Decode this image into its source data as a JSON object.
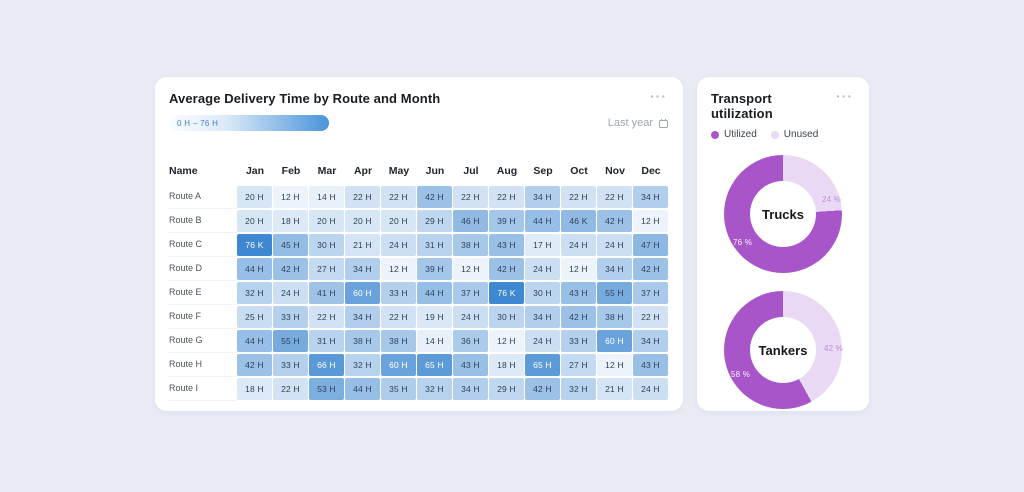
{
  "page": {
    "background": "#e8ebf4"
  },
  "heatmap_card": {
    "title": "Average Delivery Time by Route and Month",
    "menu_label": "···",
    "scale_legend": {
      "label": "0 H – 76 H"
    },
    "period_selector": {
      "label": "Last year",
      "icon": "calendar-icon"
    },
    "columns": [
      "Name",
      "Jan",
      "Feb",
      "Mar",
      "Apr",
      "May",
      "Jun",
      "Jul",
      "Aug",
      "Sep",
      "Oct",
      "Nov",
      "Dec"
    ],
    "rows": [
      {
        "name": "Route A",
        "values": [
          "20 H",
          "12 H",
          "14 H",
          "22 H",
          "22 H",
          "42 H",
          "22 H",
          "22 H",
          "34 H",
          "22 H",
          "22 H",
          "34 H"
        ]
      },
      {
        "name": "Route B",
        "values": [
          "20 H",
          "18 H",
          "20 H",
          "20 H",
          "20 H",
          "29 H",
          "46 H",
          "39 H",
          "44 H",
          "46 K",
          "42 H",
          "12 H"
        ]
      },
      {
        "name": "Route C",
        "values": [
          "76 K",
          "45 H",
          "30 H",
          "21 H",
          "24 H",
          "31 H",
          "38 H",
          "43 H",
          "17 H",
          "24 H",
          "24 H",
          "47 H"
        ]
      },
      {
        "name": "Route D",
        "values": [
          "44 H",
          "42 H",
          "27 H",
          "34 H",
          "12 H",
          "39 H",
          "12 H",
          "42 H",
          "24 H",
          "12 H",
          "34 H",
          "42 H"
        ]
      },
      {
        "name": "Route E",
        "values": [
          "32 H",
          "24 H",
          "41 H",
          "60 H",
          "33 H",
          "44 H",
          "37 H",
          "76 K",
          "30 H",
          "43 H",
          "55 H",
          "37 H"
        ]
      },
      {
        "name": "Route F",
        "values": [
          "25 H",
          "33 H",
          "22 H",
          "34 H",
          "22 H",
          "19 H",
          "24 H",
          "30 H",
          "34 H",
          "42 H",
          "38 H",
          "22 H"
        ]
      },
      {
        "name": "Route G",
        "values": [
          "44 H",
          "55 H",
          "31 H",
          "38 H",
          "38 H",
          "14 H",
          "36 H",
          "12 H",
          "24 H",
          "33 H",
          "60 H",
          "34 H"
        ]
      },
      {
        "name": "Route H",
        "values": [
          "42 H",
          "33 H",
          "66 H",
          "32 H",
          "60 H",
          "65 H",
          "43 H",
          "18 H",
          "65 H",
          "27 H",
          "12 H",
          "43 H"
        ]
      },
      {
        "name": "Route I",
        "values": [
          "18 H",
          "22 H",
          "53 H",
          "44 H",
          "35 H",
          "32 H",
          "34 H",
          "29 H",
          "42 H",
          "32 H",
          "21 H",
          "24 H"
        ]
      }
    ],
    "color_scale": {
      "min_value": 12,
      "max_value": 76,
      "from": "#edf3fa",
      "to": "#3e88d1",
      "white_text_threshold": 60,
      "dark_text_color": "#31435a",
      "light_text_color": "#ffffff"
    }
  },
  "transport_card": {
    "title": "Transport utilization",
    "menu_label": "···",
    "legend": [
      {
        "label": "Utilized",
        "color": "#a855c9"
      },
      {
        "label": "Unused",
        "color": "#ead9f4"
      }
    ],
    "donuts": [
      {
        "center_label": "Trucks",
        "utilized_pct": 76,
        "unused_pct": 24,
        "used_label": "76 %",
        "unused_label": "24 %"
      },
      {
        "center_label": "Tankers",
        "utilized_pct": 58,
        "unused_pct": 42,
        "used_label": "58 %",
        "unused_label": "42 %"
      }
    ]
  },
  "chart_data": [
    {
      "type": "heatmap",
      "title": "Average Delivery Time by Route and Month",
      "x_categories": [
        "Jan",
        "Feb",
        "Mar",
        "Apr",
        "May",
        "Jun",
        "Jul",
        "Aug",
        "Sep",
        "Oct",
        "Nov",
        "Dec"
      ],
      "y_categories": [
        "Route A",
        "Route B",
        "Route C",
        "Route D",
        "Route E",
        "Route F",
        "Route G",
        "Route H",
        "Route I"
      ],
      "unit": "H",
      "values": [
        [
          20,
          12,
          14,
          22,
          22,
          42,
          22,
          22,
          34,
          22,
          22,
          34
        ],
        [
          20,
          18,
          20,
          20,
          20,
          29,
          46,
          39,
          44,
          46,
          42,
          12
        ],
        [
          76,
          45,
          30,
          21,
          24,
          31,
          38,
          43,
          17,
          24,
          24,
          47
        ],
        [
          44,
          42,
          27,
          34,
          12,
          39,
          12,
          42,
          24,
          12,
          34,
          42
        ],
        [
          32,
          24,
          41,
          60,
          33,
          44,
          37,
          76,
          30,
          43,
          55,
          37
        ],
        [
          25,
          33,
          22,
          34,
          22,
          19,
          24,
          30,
          34,
          42,
          38,
          22
        ],
        [
          44,
          55,
          31,
          38,
          38,
          14,
          36,
          12,
          24,
          33,
          60,
          34
        ],
        [
          42,
          33,
          66,
          32,
          60,
          65,
          43,
          18,
          65,
          27,
          12,
          43
        ],
        [
          18,
          22,
          53,
          44,
          35,
          32,
          34,
          29,
          42,
          32,
          21,
          24
        ]
      ],
      "colorbar": {
        "label": "0 H – 76 H",
        "range": [
          0,
          76
        ]
      },
      "period": "Last year"
    },
    {
      "type": "pie",
      "subtype": "donut",
      "title": "Transport utilization",
      "legend": [
        "Utilized",
        "Unused"
      ],
      "charts": [
        {
          "label": "Trucks",
          "slices": [
            {
              "name": "Utilized",
              "value": 76
            },
            {
              "name": "Unused",
              "value": 24
            }
          ]
        },
        {
          "label": "Tankers",
          "slices": [
            {
              "name": "Utilized",
              "value": 58
            },
            {
              "name": "Unused",
              "value": 42
            }
          ]
        }
      ]
    }
  ]
}
